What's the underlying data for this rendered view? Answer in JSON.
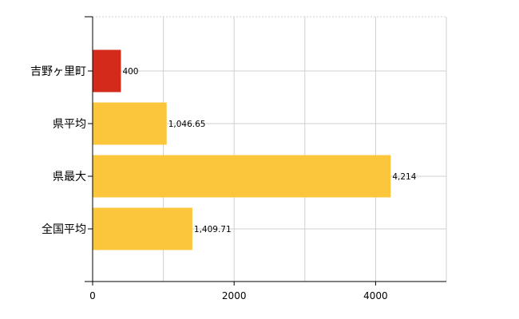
{
  "chart_data": {
    "type": "bar",
    "orientation": "horizontal",
    "categories": [
      "吉野ヶ里町",
      "県平均",
      "県最大",
      "全国平均"
    ],
    "values": [
      400,
      1046.65,
      4214,
      1409.71
    ],
    "value_labels": [
      "400",
      "1,046.65",
      "4,214",
      "1,409.71"
    ],
    "bar_colors": [
      "#d42a1c",
      "#fcc63c",
      "#fcc63c",
      "#fcc63c"
    ],
    "xlim": [
      0,
      5000
    ],
    "x_ticks": [
      0,
      2000,
      4000
    ],
    "x_tick_labels": [
      "0",
      "2000",
      "4000"
    ],
    "x_grid": [
      1000,
      2000,
      3000,
      4000,
      5000
    ],
    "grid": true,
    "title": "",
    "xlabel": "",
    "ylabel": ""
  }
}
